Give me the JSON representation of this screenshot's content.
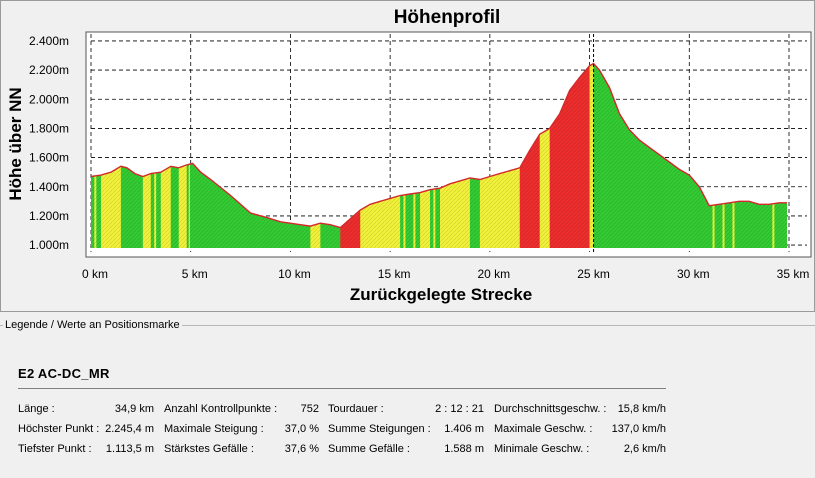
{
  "chart_data": {
    "type": "area",
    "title": "Höhenprofil",
    "xlabel": "Zurückgelegte Strecke",
    "ylabel": "Höhe über NN",
    "xlim": [
      0,
      35
    ],
    "ylim": [
      980,
      2420
    ],
    "x_ticks": [
      "0 km",
      "5 km",
      "10 km",
      "15 km",
      "20 km",
      "25 km",
      "30 km",
      "35 km"
    ],
    "y_ticks": [
      "1.000m",
      "1.200m",
      "1.400m",
      "1.600m",
      "1.800m",
      "2.000m",
      "2.200m",
      "2.400m"
    ],
    "x_tick_values": [
      0,
      5,
      10,
      15,
      20,
      25,
      30,
      35
    ],
    "y_tick_values": [
      1000,
      1200,
      1400,
      1600,
      1800,
      2000,
      2200,
      2400
    ],
    "grid": true,
    "marker_x": 25.2,
    "series": [
      {
        "x": [
          0,
          0.5,
          1,
          1.5,
          1.8,
          2.2,
          2.6,
          3,
          3.5,
          4,
          4.4,
          4.8,
          5.1,
          5.5,
          6,
          7,
          8,
          8.8,
          9.5,
          10,
          10.5,
          11,
          11.5,
          12,
          12.5,
          13,
          13.5,
          14,
          14.5,
          15,
          15.5,
          16,
          16.5,
          17,
          17.5,
          18,
          18.5,
          19,
          19.5,
          20,
          20.5,
          21,
          21.5,
          22,
          22.5,
          23,
          23.5,
          24,
          24.5,
          25,
          25.2,
          25.5,
          26,
          26.5,
          27,
          27.5,
          28,
          28.5,
          29,
          29.5,
          30,
          30.5,
          31,
          31.5,
          32,
          32.5,
          33,
          33.5,
          34,
          34.5,
          34.9
        ],
        "y": [
          1470,
          1480,
          1500,
          1540,
          1530,
          1490,
          1470,
          1490,
          1500,
          1540,
          1530,
          1550,
          1560,
          1500,
          1450,
          1340,
          1220,
          1190,
          1160,
          1150,
          1140,
          1130,
          1150,
          1140,
          1120,
          1180,
          1240,
          1280,
          1300,
          1320,
          1340,
          1350,
          1360,
          1380,
          1390,
          1420,
          1440,
          1460,
          1450,
          1470,
          1490,
          1510,
          1530,
          1650,
          1760,
          1800,
          1900,
          2060,
          2150,
          2230,
          2245,
          2200,
          2080,
          1900,
          1790,
          1720,
          1670,
          1620,
          1570,
          1520,
          1480,
          1400,
          1270,
          1280,
          1290,
          1300,
          1300,
          1280,
          1280,
          1290,
          1290
        ]
      }
    ],
    "colors": {
      "green": "#33cc33",
      "yellow": "#f2f23a",
      "red": "#ee2d2d",
      "outline": "#d22a2a"
    }
  },
  "legend_title": "Legende / Werte an Positionsmarke",
  "route_name": "E2 AC-DC_MR",
  "stats": [
    [
      {
        "label": "Länge :",
        "value": "34,9 km"
      },
      {
        "label": "Höchster Punkt :",
        "value": "2.245,4 m"
      },
      {
        "label": "Tiefster Punkt :",
        "value": "1.113,5 m"
      }
    ],
    [
      {
        "label": "Anzahl Kontrollpunkte :",
        "value": "752"
      },
      {
        "label": "Maximale Steigung :",
        "value": "37,0 %"
      },
      {
        "label": "Stärkstes Gefälle :",
        "value": "37,6 %"
      }
    ],
    [
      {
        "label": "Tourdauer :",
        "value": "2 : 12 : 21"
      },
      {
        "label": "Summe Steigungen :",
        "value": "1.406 m"
      },
      {
        "label": "Summe Gefälle :",
        "value": "1.588 m"
      }
    ],
    [
      {
        "label": "Durchschnittsgeschw. :",
        "value": "15,8 km/h"
      },
      {
        "label": "Maximale Geschw. :",
        "value": "137,0 km/h"
      },
      {
        "label": "Minimale Geschw. :",
        "value": "2,6 km/h"
      }
    ]
  ]
}
